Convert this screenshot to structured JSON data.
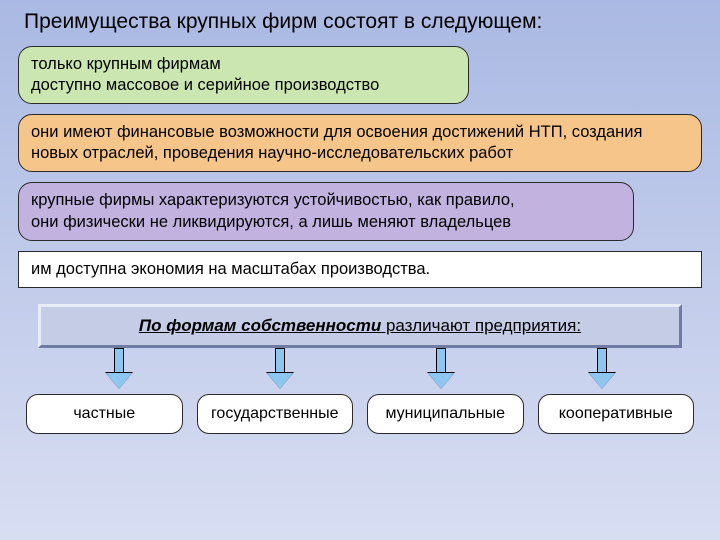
{
  "background": {
    "gradient_top": "#aab9e3",
    "gradient_bottom": "#d8def2"
  },
  "title": "Преимущества крупных фирм состоят в следующем:",
  "boxes": [
    {
      "text": "только крупным фирмам\nдоступно массовое и серийное производство",
      "bg": "#cbe6b0",
      "border": "#2a2a2a",
      "width_pct": 66
    },
    {
      "text": "они имеют финансовые возможности для освоения достижений НТП, создания новых отраслей, проведения научно-исследовательских работ",
      "bg": "#f6c58a",
      "border": "#2a2a2a",
      "width_pct": 100
    },
    {
      "text": "крупные фирмы характеризуются устойчивостью, как правило,\n они физически не ликвидируются, а лишь меняют владельцев",
      "bg": "#c1b2e0",
      "border": "#2a2a2a",
      "width_pct": 90
    },
    {
      "text": "им доступна экономия на масштабах производства.",
      "bg": "#ffffff",
      "border": "#2a2a2a",
      "width_pct": 100,
      "shape": "rect"
    }
  ],
  "subheading": {
    "prefix_ital_underline": "По формам собственности",
    "rest": " различают предприятия:",
    "bg": "#c5cce5",
    "border_light": "#e8ecf6",
    "border_dark": "#6f7ba3"
  },
  "arrow": {
    "fill": "#8fc6f0",
    "head_border": "#000000"
  },
  "bottom_boxes": [
    {
      "label": "частные"
    },
    {
      "label": "государственные"
    },
    {
      "label": "муниципальные"
    },
    {
      "label": "кооперативные"
    }
  ],
  "bottom_box_style": {
    "bg": "#ffffff",
    "border": "#2a2a2a"
  }
}
